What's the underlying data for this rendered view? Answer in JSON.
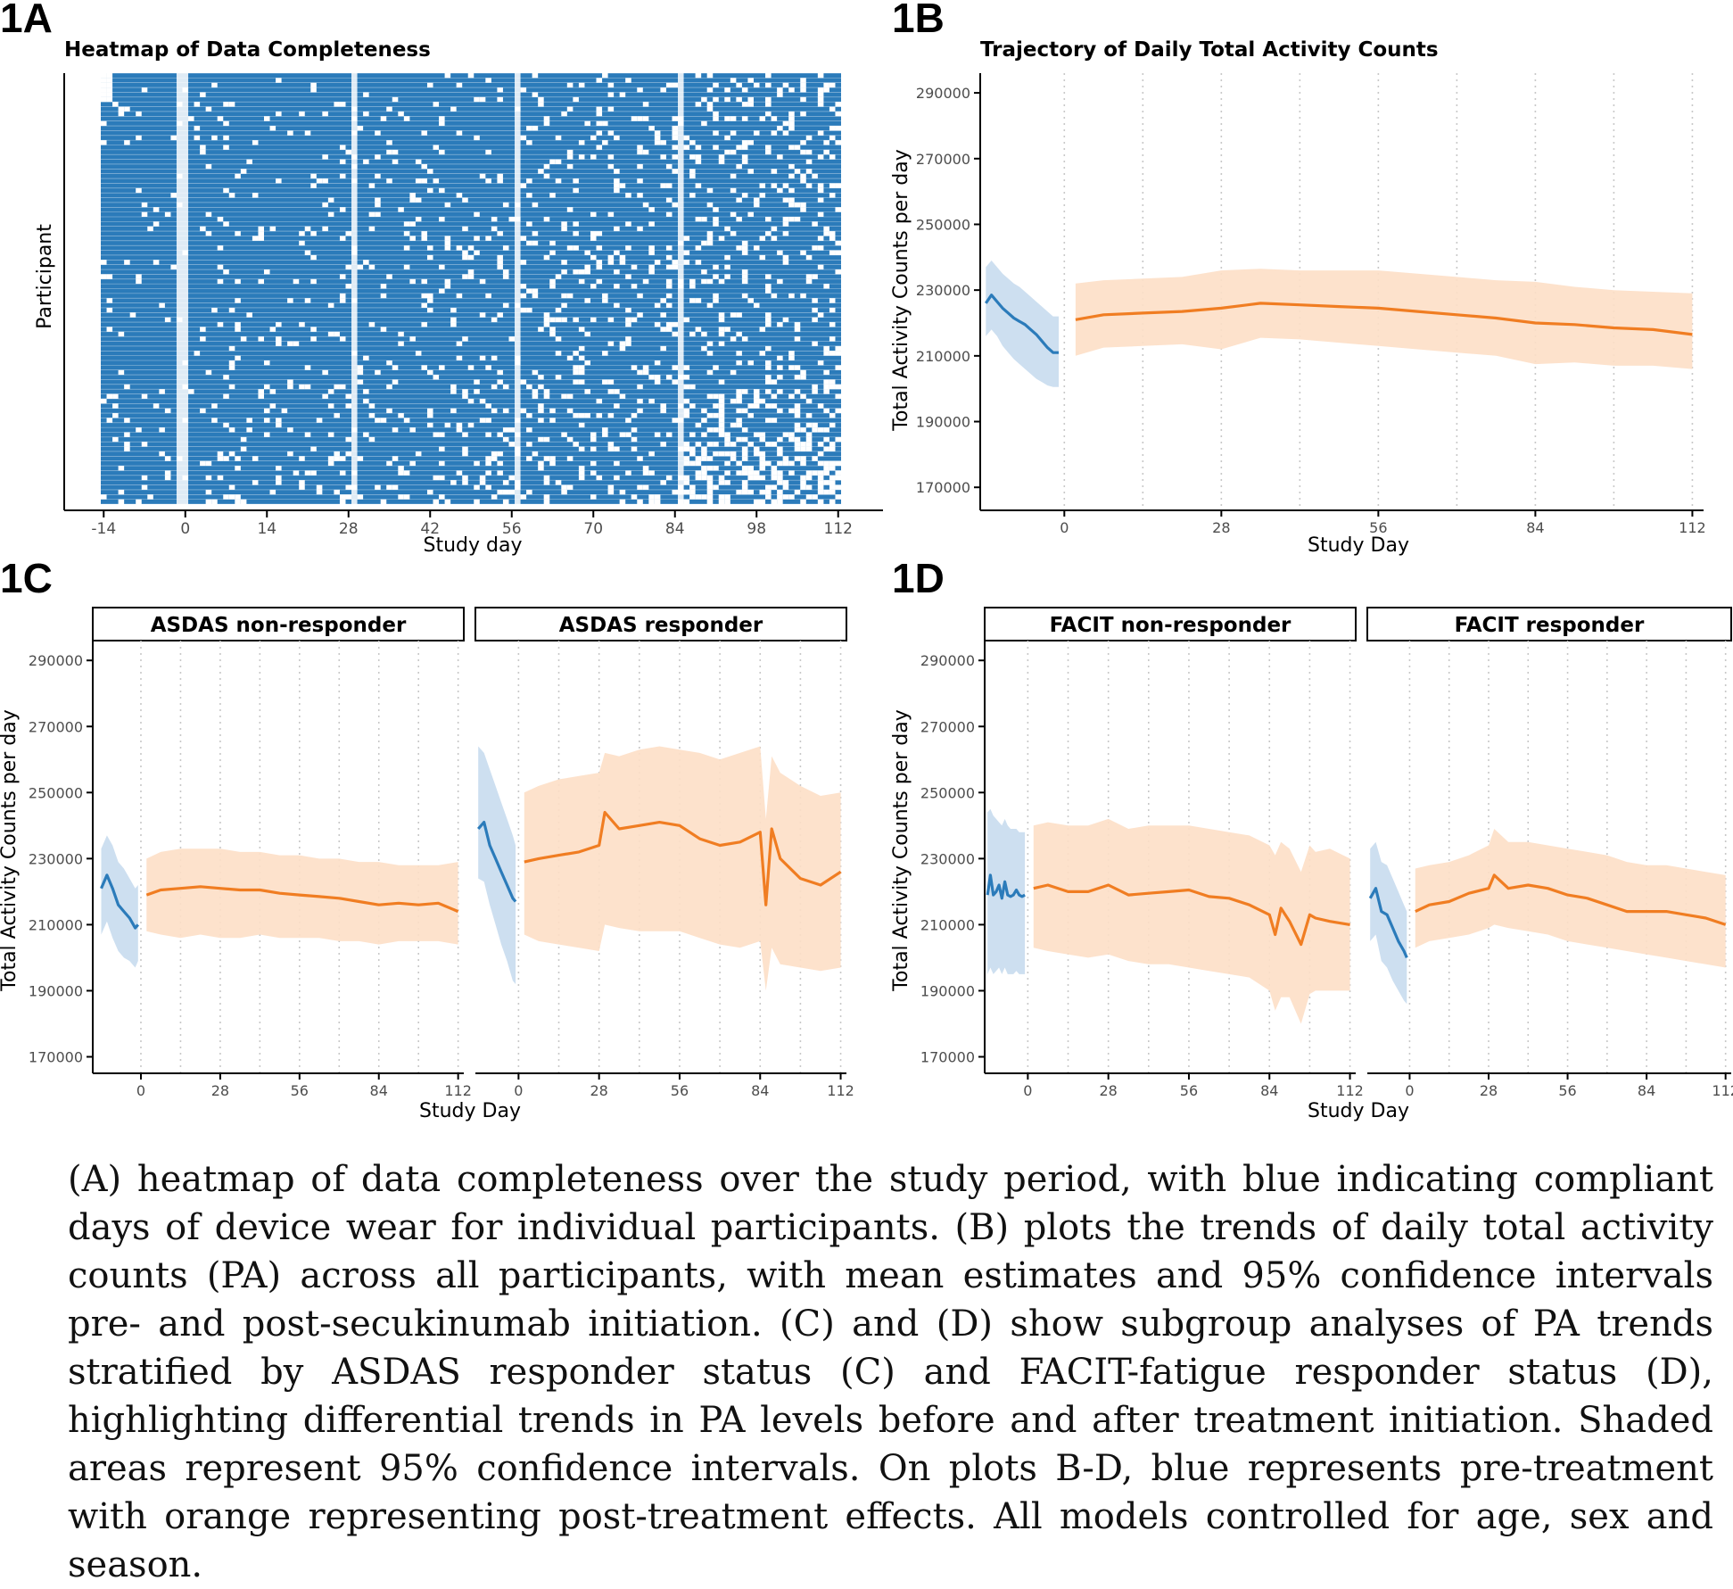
{
  "panelA": {
    "label": "1A",
    "title": "Heatmap of Data Completeness",
    "xlabel": "Study day",
    "ylabel": "Participant",
    "xticks": [
      -14,
      0,
      14,
      28,
      42,
      56,
      70,
      84,
      98,
      112
    ],
    "colors": {
      "present": "#2b7bba",
      "missing": "#ffffff"
    }
  },
  "panelB": {
    "label": "1B",
    "title": "Trajectory of Daily Total Activity Counts",
    "xlabel": "Study Day",
    "ylabel": "Total Activity Counts per day"
  },
  "panelC": {
    "label": "1C",
    "xlabel": "Study Day",
    "ylabel": "Total Activity Counts per day",
    "facets": [
      "ASDAS non-responder",
      "ASDAS responder"
    ]
  },
  "panelD": {
    "label": "1D",
    "xlabel": "Study Day",
    "ylabel": "Total Activity Counts per day",
    "facets": [
      "FACIT non-responder",
      "FACIT responder"
    ]
  },
  "colors": {
    "pre": "#2b7bba",
    "pre_band": "#c8dcee",
    "post": "#f07d22",
    "post_band": "#fddfc6",
    "grid": "#c8c8c8"
  },
  "chart_data": [
    {
      "type": "heatmap",
      "panel": "1A",
      "title": "Heatmap of Data Completeness",
      "xlabel": "Study day",
      "ylabel": "Participant",
      "xlim": [
        -14,
        112
      ],
      "value_meaning": "blue = compliant day of device wear, white = missing"
    },
    {
      "type": "line",
      "panel": "1B",
      "title": "Trajectory of Daily Total Activity Counts",
      "xlabel": "Study Day",
      "ylabel": "Total Activity Counts per day",
      "xticks": [
        0,
        28,
        56,
        84,
        112
      ],
      "yticks": [
        170000,
        190000,
        210000,
        230000,
        250000,
        270000,
        290000
      ],
      "xlim": [
        -15,
        114
      ],
      "ylim": [
        163000,
        296000
      ],
      "series": [
        {
          "x": [
            -14,
            -13,
            -12,
            -11,
            -10,
            -9,
            -8,
            -7,
            -6,
            -5,
            -4,
            -3,
            -2,
            -1
          ],
          "y": [
            226000,
            228500,
            226500,
            224500,
            223000,
            221500,
            220500,
            219500,
            218000,
            216500,
            214500,
            212500,
            211000,
            211000
          ],
          "lower": [
            216000,
            218000,
            216000,
            213000,
            211000,
            209000,
            207500,
            206000,
            204500,
            203000,
            202000,
            201000,
            200500,
            200500
          ],
          "upper": [
            237000,
            239000,
            237000,
            235000,
            233500,
            232000,
            231000,
            229500,
            228000,
            226500,
            225000,
            223500,
            222000,
            222000
          ]
        },
        {
          "x": [
            2,
            7,
            14,
            21,
            28,
            35,
            42,
            49,
            56,
            63,
            70,
            77,
            84,
            91,
            98,
            105,
            112
          ],
          "y": [
            221000,
            222500,
            223000,
            223500,
            224500,
            226000,
            225500,
            225000,
            224500,
            223500,
            222500,
            221500,
            220000,
            219500,
            218500,
            218000,
            216500
          ],
          "lower": [
            210000,
            212500,
            213000,
            213500,
            212000,
            215500,
            215000,
            214000,
            213000,
            212000,
            211000,
            210000,
            207500,
            208000,
            207000,
            207000,
            206000
          ],
          "upper": [
            232000,
            233000,
            233500,
            234000,
            236000,
            236500,
            236000,
            236000,
            236000,
            235000,
            234000,
            233000,
            232500,
            231000,
            230000,
            229500,
            229000
          ]
        }
      ]
    },
    {
      "type": "line",
      "panel": "1C",
      "facet": "ASDAS non-responder",
      "xlabel": "Study Day",
      "ylabel": "Total Activity Counts per day",
      "xticks": [
        0,
        28,
        56,
        84,
        112
      ],
      "yticks": [
        170000,
        190000,
        210000,
        230000,
        250000,
        270000,
        290000
      ],
      "xlim": [
        -17,
        114
      ],
      "ylim": [
        165000,
        296000
      ],
      "series": [
        {
          "x": [
            -14,
            -12,
            -10,
            -8,
            -6,
            -4,
            -2,
            -1
          ],
          "y": [
            221000,
            225000,
            221000,
            216000,
            214000,
            212000,
            209000,
            210000
          ],
          "lower": [
            207000,
            211000,
            206000,
            202000,
            200000,
            199000,
            197000,
            199000
          ],
          "upper": [
            233000,
            237000,
            234000,
            229000,
            227000,
            224000,
            221000,
            222000
          ]
        },
        {
          "x": [
            2,
            7,
            14,
            21,
            28,
            35,
            42,
            49,
            56,
            63,
            70,
            77,
            84,
            91,
            98,
            105,
            112
          ],
          "y": [
            219000,
            220500,
            221000,
            221500,
            221000,
            220500,
            220500,
            219500,
            219000,
            218500,
            218000,
            217000,
            216000,
            216500,
            216000,
            216500,
            214000
          ],
          "lower": [
            208000,
            207000,
            206000,
            207000,
            206000,
            206000,
            207000,
            206000,
            206000,
            206000,
            205000,
            205000,
            204000,
            205000,
            205000,
            205000,
            204000
          ],
          "upper": [
            230000,
            232000,
            233000,
            233000,
            233000,
            232000,
            232000,
            231000,
            231000,
            230000,
            230000,
            229000,
            229000,
            228000,
            228000,
            228000,
            229000
          ]
        }
      ]
    },
    {
      "type": "line",
      "panel": "1C",
      "facet": "ASDAS responder",
      "xticks": [
        0,
        28,
        56,
        84,
        112
      ],
      "xlim": [
        -15,
        114
      ],
      "ylim": [
        165000,
        296000
      ],
      "series": [
        {
          "x": [
            -14,
            -12,
            -10,
            -8,
            -6,
            -4,
            -2,
            -1
          ],
          "y": [
            239000,
            241000,
            234000,
            230000,
            226000,
            222000,
            218000,
            217000
          ],
          "lower": [
            224000,
            223000,
            216000,
            210000,
            204000,
            199000,
            193000,
            192000
          ],
          "upper": [
            264000,
            262000,
            257000,
            252000,
            247000,
            242000,
            237000,
            234000
          ]
        },
        {
          "x": [
            2,
            7,
            14,
            21,
            28,
            30,
            35,
            42,
            49,
            56,
            63,
            70,
            77,
            84,
            86,
            88,
            91,
            98,
            105,
            112
          ],
          "y": [
            229000,
            230000,
            231000,
            232000,
            234000,
            244000,
            239000,
            240000,
            241000,
            240000,
            236000,
            234000,
            235000,
            238000,
            216000,
            239000,
            230000,
            224000,
            222000,
            226000
          ],
          "lower": [
            207000,
            205000,
            204000,
            203000,
            202000,
            210000,
            209000,
            208000,
            208000,
            208000,
            206000,
            204000,
            203000,
            205000,
            190000,
            203000,
            198000,
            197000,
            196000,
            197000
          ],
          "upper": [
            250000,
            252000,
            254000,
            255000,
            256000,
            262000,
            261000,
            263000,
            264000,
            263000,
            262000,
            260000,
            262000,
            264000,
            242000,
            261000,
            256000,
            252000,
            249000,
            250000
          ]
        }
      ]
    },
    {
      "type": "line",
      "panel": "1D",
      "facet": "FACIT non-responder",
      "xlabel": "Study Day",
      "ylabel": "Total Activity Counts per day",
      "xticks": [
        0,
        28,
        56,
        84,
        112
      ],
      "yticks": [
        170000,
        190000,
        210000,
        230000,
        250000,
        270000,
        290000
      ],
      "xlim": [
        -15,
        114
      ],
      "ylim": [
        165000,
        296000
      ],
      "series": [
        {
          "x": [
            -14,
            -13,
            -12,
            -11,
            -10,
            -9,
            -8,
            -7,
            -6,
            -5,
            -4,
            -3,
            -2,
            -1
          ],
          "y": [
            219000,
            225000,
            219000,
            220000,
            222000,
            218000,
            223000,
            219000,
            218500,
            219000,
            220500,
            219000,
            218500,
            219000
          ],
          "lower": [
            195000,
            197000,
            195000,
            196000,
            197000,
            195000,
            197000,
            195000,
            195000,
            195000,
            196000,
            195000,
            195000,
            195000
          ],
          "upper": [
            244000,
            245000,
            243000,
            242000,
            241000,
            240000,
            242000,
            240000,
            239000,
            239000,
            239000,
            238000,
            238000,
            238000
          ]
        },
        {
          "x": [
            2,
            7,
            14,
            21,
            28,
            35,
            42,
            49,
            56,
            63,
            70,
            77,
            84,
            86,
            88,
            91,
            95,
            98,
            100,
            105,
            112
          ],
          "y": [
            221000,
            222000,
            220000,
            220000,
            222000,
            219000,
            219500,
            220000,
            220500,
            218500,
            218000,
            216000,
            213000,
            207000,
            215000,
            211000,
            204000,
            213000,
            212000,
            211000,
            210000
          ],
          "lower": [
            203000,
            202000,
            201000,
            200000,
            201000,
            199000,
            198000,
            198000,
            197000,
            196000,
            195000,
            194000,
            190000,
            184000,
            188000,
            188000,
            180000,
            189000,
            190000,
            190000,
            190000
          ],
          "upper": [
            240000,
            241000,
            240000,
            240000,
            242000,
            239000,
            240000,
            240000,
            240000,
            239000,
            238000,
            237000,
            234000,
            231000,
            235000,
            233000,
            226000,
            234000,
            232000,
            233000,
            230000
          ]
        }
      ]
    },
    {
      "type": "line",
      "panel": "1D",
      "facet": "FACIT responder",
      "xticks": [
        0,
        28,
        56,
        84,
        112
      ],
      "xlim": [
        -15,
        114
      ],
      "ylim": [
        165000,
        296000
      ],
      "series": [
        {
          "x": [
            -14,
            -12,
            -10,
            -8,
            -6,
            -4,
            -2,
            -1
          ],
          "y": [
            218000,
            221000,
            214000,
            213000,
            209000,
            205000,
            202000,
            200000
          ],
          "lower": [
            205000,
            207000,
            199000,
            197000,
            193000,
            190000,
            187000,
            186000
          ],
          "upper": [
            233000,
            235000,
            229000,
            228000,
            224000,
            220000,
            216000,
            214000
          ]
        },
        {
          "x": [
            2,
            7,
            14,
            21,
            28,
            30,
            35,
            42,
            49,
            56,
            63,
            70,
            77,
            84,
            91,
            98,
            105,
            112
          ],
          "y": [
            214000,
            216000,
            217000,
            219500,
            221000,
            225000,
            221000,
            222000,
            221000,
            219000,
            218000,
            216000,
            214000,
            214000,
            214000,
            213000,
            212000,
            210000
          ],
          "lower": [
            203000,
            205000,
            206000,
            207000,
            209000,
            210000,
            209000,
            208000,
            207000,
            205000,
            204000,
            203000,
            202000,
            201000,
            200000,
            199000,
            198000,
            197000
          ],
          "upper": [
            227000,
            228000,
            229000,
            231000,
            234000,
            239000,
            235000,
            235000,
            234000,
            233000,
            232000,
            231000,
            229000,
            228000,
            228000,
            227000,
            226000,
            225000
          ]
        }
      ]
    }
  ],
  "caption": "(A) heatmap of data completeness over the study period, with blue indicating compliant days of device wear for individual participants. (B) plots the trends of daily total activity counts (PA) across all participants, with mean estimates and 95% confidence intervals pre- and post-secukinumab initiation. (C) and (D) show subgroup analyses of PA trends stratified by ASDAS responder status (C) and FACIT-fatigue responder status (D), highlighting differential trends in PA levels before and after treatment initiation. Shaded areas represent 95% confidence intervals. On plots B-D, blue represents pre-treatment with orange representing post-treatment effects. All models controlled for age, sex and season."
}
